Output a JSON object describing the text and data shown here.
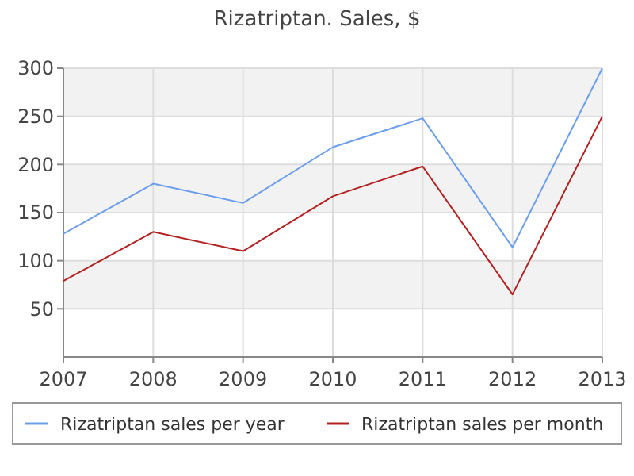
{
  "chart_data": {
    "type": "line",
    "title": "Rizatriptan. Sales, $",
    "x": [
      2007,
      2008,
      2009,
      2010,
      2011,
      2012,
      2013
    ],
    "series": [
      {
        "name": "Rizatriptan sales per year",
        "color": "#6d9eeb",
        "values": [
          128,
          180,
          160,
          218,
          248,
          114,
          300
        ]
      },
      {
        "name": "Rizatriptan sales per month",
        "color": "#b22222",
        "values": [
          79,
          130,
          110,
          167,
          198,
          65,
          250
        ]
      }
    ],
    "xlim": [
      2007,
      2013
    ],
    "xticks": [
      2007,
      2008,
      2009,
      2010,
      2011,
      2012,
      2013
    ],
    "ylim": [
      0,
      300
    ],
    "yticks": [
      50,
      100,
      150,
      200,
      250,
      300
    ],
    "grid": true,
    "legend": "bottom",
    "marker": "none",
    "line_style": "solid"
  }
}
